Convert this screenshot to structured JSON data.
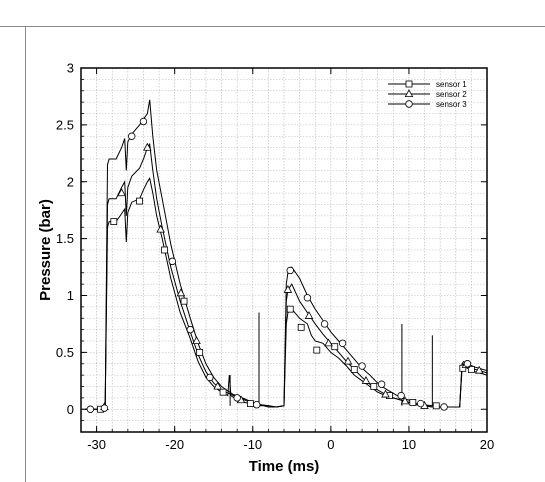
{
  "chart_data": {
    "type": "line",
    "title": "",
    "xlabel": "Time (ms)",
    "ylabel": "Pressure (bar)",
    "xlim": [
      -32,
      20
    ],
    "ylim": [
      -0.2,
      3
    ],
    "xticks": [
      -30,
      -20,
      -10,
      0,
      10,
      20
    ],
    "xtick_labels": [
      "-30",
      "-20",
      "-10",
      "0",
      "10",
      "20"
    ],
    "yticks": [
      0,
      0.5,
      1,
      1.5,
      2,
      2.5,
      3
    ],
    "ytick_labels": [
      "0",
      "0.5",
      "1",
      "1.5",
      "2",
      "2.5",
      "3"
    ],
    "grid": true,
    "legend_position": "top-right",
    "series": [
      {
        "name": "sensor 1",
        "marker": "square",
        "color": "#000000",
        "x": [
          -31.5,
          -29.5,
          -28.9,
          -28.6,
          -28.4,
          -27.5,
          -26.8,
          -26.4,
          -26.2,
          -26.0,
          -25.5,
          -24.5,
          -24.0,
          -23.5,
          -23.2,
          -22.8,
          -22.3,
          -21.6,
          -20.5,
          -19.3,
          -18.0,
          -17.0,
          -16.0,
          -15.0,
          -14.0,
          -13.2,
          -13.0,
          -12.8,
          -12.0,
          -11.0,
          -10.0,
          -9.3,
          -9.0,
          -8.6,
          -8.0,
          -7.0,
          -6.0,
          -5.7,
          -5.5,
          -5.0,
          -4.0,
          -3.0,
          -2.5,
          -2.0,
          -1.0,
          0.0,
          1.0,
          2.0,
          3.0,
          4.0,
          5.0,
          6.0,
          7.0,
          8.0,
          9.0,
          10.0,
          11.0,
          12.0,
          13.0,
          14.0,
          15.0,
          16.5,
          16.8,
          17.0,
          17.5,
          18.5,
          20.0
        ],
        "y": [
          0.0,
          0.0,
          0.03,
          1.6,
          1.65,
          1.65,
          1.72,
          1.76,
          1.47,
          1.73,
          1.82,
          1.85,
          1.93,
          2.0,
          2.03,
          1.9,
          1.7,
          1.5,
          1.15,
          0.85,
          0.62,
          0.42,
          0.28,
          0.2,
          0.15,
          0.12,
          0.3,
          0.12,
          0.08,
          0.06,
          0.04,
          0.03,
          0.03,
          0.03,
          0.02,
          0.02,
          0.03,
          0.75,
          0.85,
          0.88,
          0.8,
          0.75,
          0.65,
          0.6,
          0.58,
          0.5,
          0.45,
          0.38,
          0.3,
          0.25,
          0.2,
          0.15,
          0.12,
          0.1,
          0.08,
          0.06,
          0.04,
          0.03,
          0.02,
          0.02,
          0.02,
          0.02,
          0.35,
          0.38,
          0.36,
          0.33,
          0.3
        ],
        "marker_x": [
          -29.5,
          -27.8,
          -24.5,
          -21.3,
          -18.8,
          -16.8,
          -13.8,
          -10.3,
          -5.2,
          -3.8,
          -1.8,
          0.5,
          3.0,
          5.5,
          7.5,
          10.5,
          13.5,
          16.9,
          18.0
        ],
        "marker_y": [
          0.0,
          1.65,
          1.83,
          1.4,
          0.95,
          0.5,
          0.15,
          0.05,
          0.88,
          0.72,
          0.52,
          0.55,
          0.35,
          0.2,
          0.12,
          0.06,
          0.03,
          0.36,
          0.35
        ]
      },
      {
        "name": "sensor 2",
        "marker": "triangle",
        "color": "#000000",
        "x": [
          -31.5,
          -29.5,
          -28.9,
          -28.6,
          -28.4,
          -27.5,
          -26.8,
          -26.4,
          -26.2,
          -26.0,
          -25.5,
          -24.5,
          -24.0,
          -23.5,
          -23.2,
          -22.8,
          -22.3,
          -21.6,
          -20.5,
          -19.3,
          -18.0,
          -17.0,
          -16.0,
          -15.0,
          -14.0,
          -12.5,
          -11.0,
          -10.0,
          -9.0,
          -8.0,
          -7.0,
          -6.0,
          -5.7,
          -5.5,
          -5.0,
          -4.0,
          -3.0,
          -2.0,
          -1.0,
          0.0,
          1.0,
          2.0,
          3.0,
          4.0,
          5.0,
          6.0,
          7.0,
          8.0,
          9.0,
          10.0,
          11.0,
          12.0,
          13.0,
          14.0,
          15.0,
          16.5,
          16.8,
          17.0,
          17.5,
          18.5,
          20.0
        ],
        "y": [
          0.0,
          0.0,
          0.03,
          1.8,
          1.85,
          1.85,
          1.95,
          2.0,
          1.7,
          1.95,
          2.05,
          2.12,
          2.2,
          2.3,
          2.33,
          2.1,
          1.85,
          1.6,
          1.25,
          0.95,
          0.68,
          0.48,
          0.33,
          0.23,
          0.17,
          0.12,
          0.08,
          0.05,
          0.04,
          0.03,
          0.02,
          0.03,
          0.95,
          1.05,
          1.1,
          0.95,
          0.85,
          0.75,
          0.66,
          0.58,
          0.5,
          0.42,
          0.35,
          0.28,
          0.22,
          0.17,
          0.13,
          0.1,
          0.08,
          0.06,
          0.04,
          0.03,
          0.02,
          0.02,
          0.02,
          0.02,
          0.38,
          0.4,
          0.38,
          0.35,
          0.32
        ],
        "marker_x": [
          -29.0,
          -26.8,
          -23.5,
          -21.8,
          -19.2,
          -17.2,
          -14.5,
          -11.5,
          -5.5,
          -2.8,
          -0.3,
          2.2,
          4.5,
          7.0,
          9.5,
          12.0,
          17.3,
          19.0
        ],
        "marker_y": [
          0.02,
          1.9,
          2.3,
          1.58,
          1.02,
          0.6,
          0.2,
          0.08,
          1.05,
          0.82,
          0.58,
          0.42,
          0.25,
          0.13,
          0.07,
          0.03,
          0.39,
          0.34
        ]
      },
      {
        "name": "sensor 3",
        "marker": "circle",
        "color": "#000000",
        "x": [
          -31.5,
          -29.5,
          -28.9,
          -28.6,
          -28.4,
          -27.5,
          -26.8,
          -26.4,
          -26.2,
          -26.0,
          -25.5,
          -24.5,
          -24.0,
          -23.5,
          -23.2,
          -22.8,
          -22.3,
          -21.6,
          -20.5,
          -19.3,
          -18.0,
          -17.0,
          -16.0,
          -15.0,
          -14.0,
          -12.5,
          -11.0,
          -10.0,
          -9.0,
          -8.0,
          -7.0,
          -6.0,
          -5.7,
          -5.5,
          -5.0,
          -4.0,
          -3.0,
          -2.0,
          -1.0,
          0.0,
          1.0,
          2.0,
          3.0,
          4.0,
          5.0,
          6.0,
          7.0,
          8.0,
          9.0,
          10.0,
          11.0,
          12.0,
          13.0,
          14.0,
          15.0,
          16.5,
          16.8,
          17.0,
          17.5,
          18.5,
          20.0
        ],
        "y": [
          0.0,
          0.0,
          0.03,
          2.15,
          2.2,
          2.2,
          2.3,
          2.38,
          2.1,
          2.35,
          2.42,
          2.5,
          2.55,
          2.6,
          2.72,
          2.4,
          2.1,
          1.85,
          1.45,
          1.1,
          0.8,
          0.58,
          0.4,
          0.28,
          0.2,
          0.13,
          0.09,
          0.06,
          0.04,
          0.03,
          0.02,
          0.03,
          1.1,
          1.2,
          1.25,
          1.15,
          1.0,
          0.88,
          0.78,
          0.68,
          0.6,
          0.52,
          0.44,
          0.36,
          0.3,
          0.23,
          0.18,
          0.14,
          0.1,
          0.08,
          0.05,
          0.04,
          0.03,
          0.02,
          0.02,
          0.02,
          0.4,
          0.42,
          0.4,
          0.37,
          0.34
        ],
        "marker_x": [
          -30.8,
          -29.0,
          -25.5,
          -24.0,
          -20.3,
          -18.0,
          -15.5,
          -12.0,
          -9.5,
          -5.2,
          -3.0,
          -0.8,
          1.5,
          4.0,
          6.5,
          9.0,
          11.5,
          14.5,
          17.5
        ],
        "marker_y": [
          0.0,
          0.01,
          2.4,
          2.53,
          1.3,
          0.7,
          0.28,
          0.1,
          0.04,
          1.22,
          0.98,
          0.75,
          0.58,
          0.38,
          0.22,
          0.12,
          0.05,
          0.02,
          0.4
        ]
      }
    ],
    "spikes": [
      {
        "x": -9.2,
        "y": 0.85
      },
      {
        "x": -12.9,
        "y": 0.3
      },
      {
        "x": 9.1,
        "y": 0.75
      },
      {
        "x": 13.0,
        "y": 0.65
      }
    ]
  }
}
